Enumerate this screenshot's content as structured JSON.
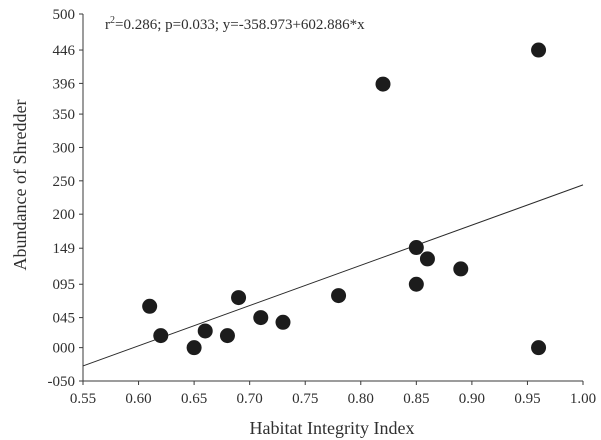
{
  "chart_data": {
    "type": "scatter",
    "xlabel": "Habitat Integrity Index",
    "ylabel": "Abundance of Shredder",
    "xlim": [
      0.55,
      1.0
    ],
    "ylim": [
      -50,
      500
    ],
    "x_ticks": [
      "0.55",
      "0.60",
      "0.65",
      "0.70",
      "0.75",
      "0.80",
      "0.85",
      "0.90",
      "0.95",
      "1.00"
    ],
    "y_ticks": [
      {
        "value": 500,
        "label": "500"
      },
      {
        "value": 446,
        "label": "446"
      },
      {
        "value": 396,
        "label": "396"
      },
      {
        "value": 350,
        "label": "350"
      },
      {
        "value": 300,
        "label": "300"
      },
      {
        "value": 250,
        "label": "250"
      },
      {
        "value": 200,
        "label": "200"
      },
      {
        "value": 149,
        "label": "149"
      },
      {
        "value": 95,
        "label": "095"
      },
      {
        "value": 45,
        "label": "045"
      },
      {
        "value": 0,
        "label": "000"
      },
      {
        "value": -50,
        "label": "-050"
      }
    ],
    "annotation": {
      "prefix": "r",
      "sup": "2",
      "rest": "=0.286; p=0.033; y=-358.973+602.886*x"
    },
    "trendline": {
      "intercept": -358.973,
      "slope": 602.886
    },
    "points": [
      {
        "x": 0.61,
        "y": 62
      },
      {
        "x": 0.62,
        "y": 18
      },
      {
        "x": 0.65,
        "y": 0
      },
      {
        "x": 0.66,
        "y": 25
      },
      {
        "x": 0.68,
        "y": 18
      },
      {
        "x": 0.69,
        "y": 75
      },
      {
        "x": 0.71,
        "y": 45
      },
      {
        "x": 0.73,
        "y": 38
      },
      {
        "x": 0.78,
        "y": 78
      },
      {
        "x": 0.82,
        "y": 395
      },
      {
        "x": 0.85,
        "y": 150
      },
      {
        "x": 0.85,
        "y": 95
      },
      {
        "x": 0.86,
        "y": 133
      },
      {
        "x": 0.89,
        "y": 118
      },
      {
        "x": 0.96,
        "y": 446
      },
      {
        "x": 0.96,
        "y": 0
      }
    ],
    "grid": false,
    "legend": "none"
  }
}
